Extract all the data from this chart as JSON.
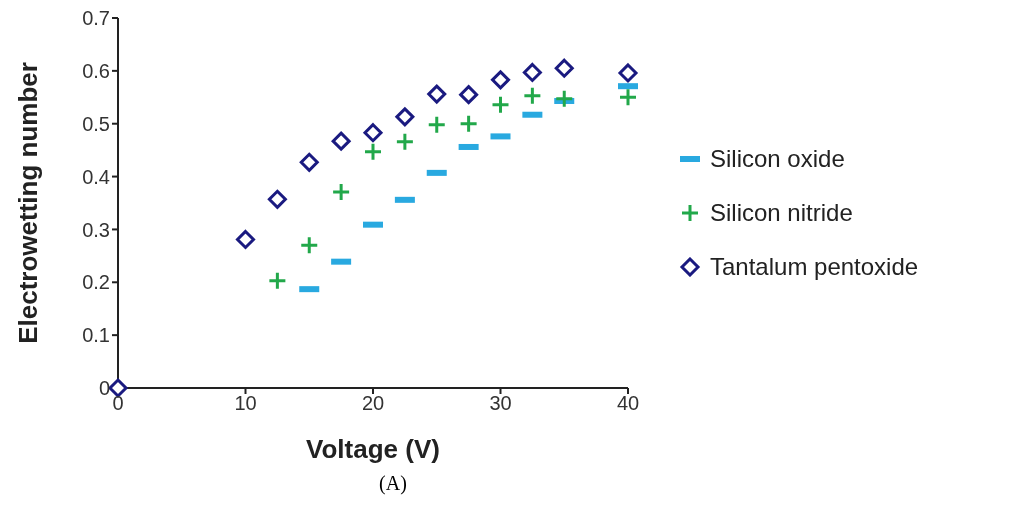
{
  "chart_data": {
    "type": "scatter",
    "xlabel": "Voltage (V)",
    "ylabel": "Electrowetting number",
    "xlim": [
      0,
      40
    ],
    "xticks": [
      0,
      10,
      20,
      30,
      40
    ],
    "ylim": [
      0,
      0.7
    ],
    "yticks": [
      0,
      0.1,
      0.2,
      0.3,
      0.4,
      0.5,
      0.6,
      0.7
    ],
    "grid": false,
    "legend": "right",
    "annotations": [
      "(A)"
    ],
    "series": [
      {
        "name": "Silicon oxide",
        "color": "#29a9e0",
        "marker": "square",
        "x": [
          15,
          17.5,
          20,
          22.5,
          25,
          27.5,
          30,
          32.5,
          35,
          40
        ],
        "values": [
          0.187,
          0.239,
          0.309,
          0.356,
          0.407,
          0.456,
          0.476,
          0.517,
          0.543,
          0.571
        ]
      },
      {
        "name": "Silicon nitride",
        "color": "#22a84a",
        "marker": "cross",
        "x": [
          12.5,
          15,
          17.5,
          20,
          22.5,
          25,
          27.5,
          30,
          32.5,
          35,
          40
        ],
        "values": [
          0.203,
          0.27,
          0.371,
          0.447,
          0.466,
          0.498,
          0.5,
          0.536,
          0.553,
          0.547,
          0.55
        ]
      },
      {
        "name": "Tantalum pentoxide",
        "color": "#1a1a80",
        "marker": "diamond",
        "x": [
          0,
          10,
          12.5,
          15,
          17.5,
          20,
          22.5,
          25,
          27.5,
          30,
          32.5,
          35,
          40
        ],
        "values": [
          0,
          0.281,
          0.357,
          0.427,
          0.467,
          0.483,
          0.513,
          0.556,
          0.555,
          0.583,
          0.597,
          0.605,
          0.596
        ]
      }
    ]
  }
}
